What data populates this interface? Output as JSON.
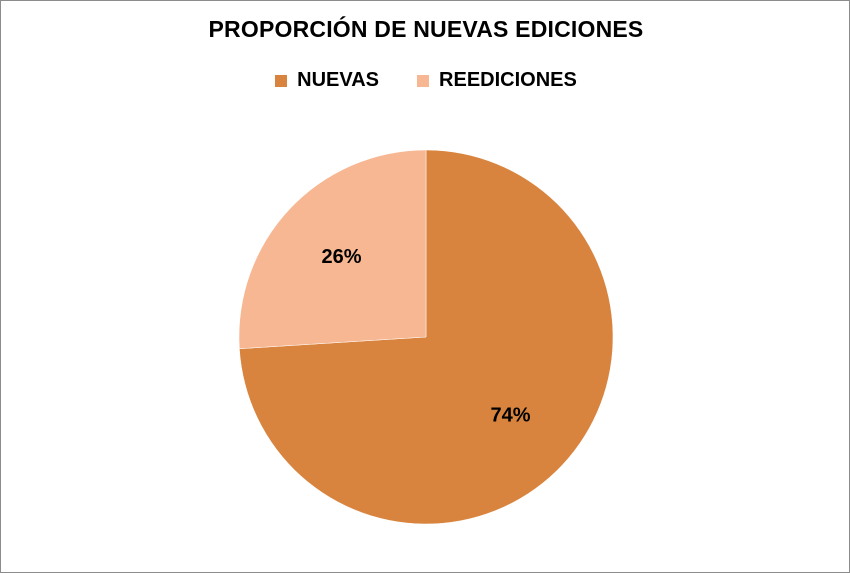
{
  "chart_data": {
    "type": "pie",
    "title": "PROPORCIÓN DE NUEVAS EDICIONES",
    "legend_position": "top",
    "slices": [
      {
        "label": "NUEVAS",
        "value": 74,
        "display": "74%",
        "color": "#D9843E"
      },
      {
        "label": "REEDICIONES",
        "value": 26,
        "display": "26%",
        "color": "#F7B793"
      }
    ]
  }
}
